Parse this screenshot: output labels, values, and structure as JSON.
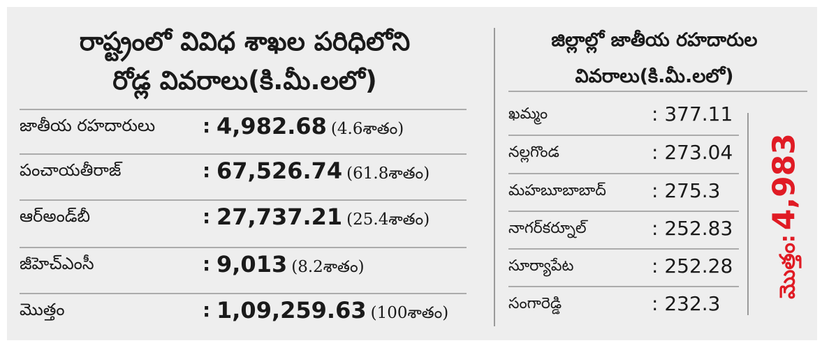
{
  "state_section": {
    "title_line1": "రాష్ట్రంలో వివిధ శాఖల పరిధిలోని",
    "title_line2": "రోడ్ల వివరాలు(కి.మీ.లలో)",
    "rows": [
      {
        "name": "జాతీయ రహదారులు",
        "value": "4,982.68",
        "percent": "(4.6శాతం)"
      },
      {
        "name": "పంచాయతీరాజ్",
        "value": "67,526.74",
        "percent": "(61.8శాతం)"
      },
      {
        "name": "ఆర్‌అండ్‌బీ",
        "value": "27,737.21",
        "percent": "(25.4శాతం)"
      },
      {
        "name": "జీహెచ్‌ఎంసీ",
        "value": "9,013",
        "percent": "(8.2శాతం)"
      },
      {
        "name": "మొత్తం",
        "value": "1,09,259.63",
        "percent": "(100శాతం)"
      }
    ]
  },
  "district_section": {
    "title_line1": "జిల్లాల్లో జాతీయ రహదారుల",
    "title_line2": "వివరాలు(కి.మీ.లలో)",
    "rows": [
      {
        "name": "ఖమ్మం",
        "value": ": 377.11"
      },
      {
        "name": "నల్లగొండ",
        "value": ": 273.04"
      },
      {
        "name": "మహబూబాబాద్",
        "value": ": 275.3"
      },
      {
        "name": "నాగర్‌కర్నూల్",
        "value": ": 252.83"
      },
      {
        "name": "సూర్యాపేట",
        "value": ": 252.28"
      },
      {
        "name": "సంగారెడ్డి",
        "value": ": 232.3"
      }
    ],
    "total_label": "మొత్తం:",
    "total_value": "4,983"
  },
  "colors": {
    "background": "#eeeeee",
    "accent_red": "#e01b24",
    "rule": "#ababab"
  }
}
